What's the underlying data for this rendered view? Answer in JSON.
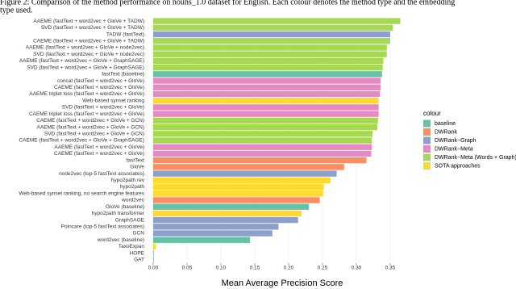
{
  "caption": [
    "Figure 2: Comparison of the method performance on nouns_1.0 dataset for English. Each colour denotes the method type and the embedding",
    "type used."
  ],
  "chart_data": {
    "type": "barh",
    "x_label": "Mean Average Precision Score",
    "legend_title": "colour",
    "categories": [
      "AAEME (fastText + word2vec + GloVe + TADW)",
      "SVD (fastText + word2vec + GloVe + TADW)",
      "TADW (fastText)",
      "CAEME (fastText + word2vec + GloVe + TADW)",
      "AAEME (fastText + word2vec + GloVe + node2vec)",
      "SVD (fastText + word2vec + GloVe + node2vec)",
      "AAEME (fastText + word2vec + GloVe + GraphSAGE)",
      "SVD (fastText + word2vec + GloVe + GraphSAGE)",
      "fastText (baseline)",
      "concat (fastText + word2vec + GloVe)",
      "CAEME (fastText + word2vec + GloVe)",
      "AAEME triplet loss (fastText + word2vec + GloVe)",
      "Web-based synset ranking",
      "SVD (fastText + word2vec + GloVe)",
      "CAEME triplet loss (fastText + word2vec + GloVe)",
      "CAEME (fastText + word2vec + GloVe + GCN)",
      "AAEME (fastText + word2vec + GloVe + GCN)",
      "SVD (fastText + word2vec + GloVe + GCN)",
      "CAEME (fastText + word2vec + GloVe + GraphSAGE)",
      "AAEME (fastText + word2vec + GloVe)",
      "CAEME (fastText + word2vec + GloVe)",
      "fastText",
      "GloVe",
      "node2vec (top-5 fastText associates)",
      "hypo2path rev",
      "hypo2path",
      "Web-based synset ranking, no search engine features",
      "word2vec",
      "GloVe (baseline)",
      "hypo2path transformer",
      "GraphSAGE",
      "Poincare (top-5 fastText associates)",
      "GCN",
      "word2vec (baseline)",
      "TaxoExpan",
      "HOPE",
      "GAT"
    ],
    "series": [
      {
        "name": "baseline",
        "color": "#66c2a5",
        "values": [
          null,
          null,
          null,
          null,
          null,
          null,
          null,
          null,
          0.338,
          null,
          null,
          null,
          null,
          null,
          null,
          null,
          null,
          null,
          null,
          null,
          null,
          null,
          null,
          null,
          null,
          null,
          null,
          null,
          0.23,
          null,
          null,
          null,
          null,
          0.143,
          null,
          null,
          null
        ]
      },
      {
        "name": "DWRank",
        "color": "#fc8d62",
        "values": [
          null,
          null,
          null,
          null,
          null,
          null,
          null,
          null,
          null,
          null,
          null,
          null,
          null,
          null,
          null,
          null,
          null,
          null,
          null,
          null,
          null,
          0.315,
          0.282,
          null,
          null,
          null,
          null,
          0.246,
          null,
          null,
          null,
          null,
          null,
          null,
          null,
          null,
          null
        ]
      },
      {
        "name": "DWRank−Graph",
        "color": "#8da0cb",
        "values": [
          null,
          null,
          0.35,
          null,
          null,
          null,
          null,
          null,
          null,
          null,
          null,
          null,
          null,
          null,
          null,
          null,
          null,
          null,
          null,
          null,
          null,
          null,
          null,
          0.271,
          null,
          null,
          null,
          null,
          null,
          null,
          0.214,
          0.185,
          0.176,
          null,
          null,
          0.001,
          0.0
        ]
      },
      {
        "name": "DWRank−Meta",
        "color": "#e78ac3",
        "values": [
          null,
          null,
          null,
          null,
          null,
          null,
          null,
          null,
          null,
          0.336,
          0.336,
          0.335,
          null,
          0.333,
          0.333,
          null,
          null,
          null,
          null,
          0.323,
          0.322,
          null,
          null,
          null,
          null,
          null,
          null,
          null,
          null,
          null,
          null,
          null,
          null,
          null,
          null,
          null,
          null
        ]
      },
      {
        "name": "DWRank−Meta (Words + Graph)",
        "color": "#a6d854",
        "values": [
          0.365,
          0.354,
          null,
          0.35,
          0.345,
          0.345,
          0.34,
          0.339,
          null,
          null,
          null,
          null,
          null,
          null,
          null,
          0.332,
          0.331,
          0.324,
          0.323,
          null,
          null,
          null,
          null,
          null,
          null,
          null,
          null,
          null,
          null,
          null,
          null,
          null,
          null,
          null,
          null,
          null,
          null
        ]
      },
      {
        "name": "SOTA approaches",
        "color": "#ffd92f",
        "values": [
          null,
          null,
          null,
          null,
          null,
          null,
          null,
          null,
          null,
          null,
          null,
          null,
          0.333,
          null,
          null,
          null,
          null,
          null,
          null,
          null,
          null,
          null,
          null,
          null,
          0.262,
          0.252,
          0.251,
          null,
          null,
          0.219,
          null,
          null,
          null,
          null,
          0.004,
          null,
          null
        ]
      }
    ],
    "xlim": [
      -0.0083,
      0.387
    ],
    "xticks": [
      {
        "value": 0,
        "label": "0.00"
      },
      {
        "value": 0.05,
        "label": "0.05"
      },
      {
        "value": 0.1,
        "label": "0.10"
      },
      {
        "value": 0.15,
        "label": "0.15"
      },
      {
        "value": 0.2,
        "label": "0.20"
      },
      {
        "value": 0.25,
        "label": "0.25"
      },
      {
        "value": 0.3,
        "label": "0.30"
      },
      {
        "value": 0.35,
        "label": "0.35"
      }
    ],
    "grid": true
  }
}
